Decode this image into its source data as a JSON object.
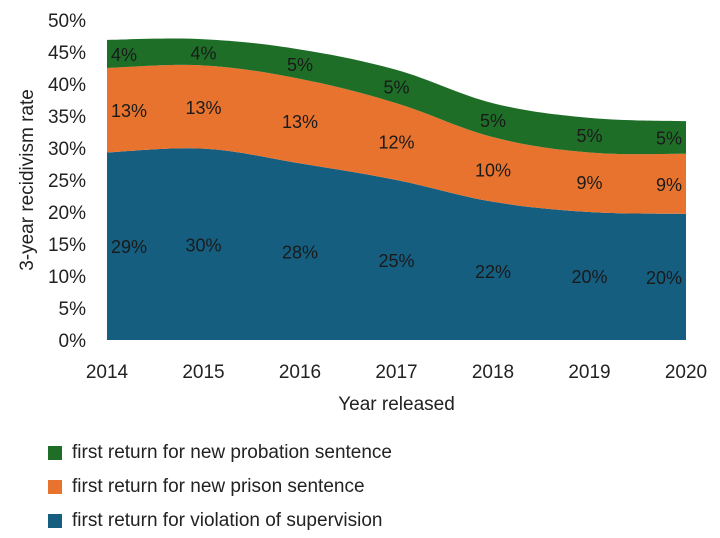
{
  "chart_data": {
    "type": "area",
    "stacked": true,
    "xlabel": "Year released",
    "ylabel": "3-year recidivism rate",
    "ylim": [
      0,
      50
    ],
    "y_ticks": [
      "0%",
      "5%",
      "10%",
      "15%",
      "20%",
      "25%",
      "30%",
      "35%",
      "40%",
      "45%",
      "50%"
    ],
    "categories": [
      "2014",
      "2015",
      "2016",
      "2017",
      "2018",
      "2019",
      "2020"
    ],
    "grid": false,
    "legend_position": "bottom",
    "series": [
      {
        "name": "first return for violation of supervision",
        "color": "#155e80",
        "values": [
          29.3,
          29.9,
          27.6,
          25.0,
          21.6,
          20.0,
          19.7
        ],
        "labels": [
          "29%",
          "30%",
          "28%",
          "25%",
          "22%",
          "20%",
          "20%"
        ]
      },
      {
        "name": "first return for new prison sentence",
        "color": "#e8732e",
        "values": [
          13.2,
          13.0,
          13.2,
          12.0,
          10.1,
          9.3,
          9.4
        ],
        "labels": [
          "13%",
          "13%",
          "13%",
          "12%",
          "10%",
          "9%",
          "9%"
        ]
      },
      {
        "name": "first return for new probation sentence",
        "color": "#1e6e28",
        "values": [
          4.4,
          4.1,
          4.6,
          5.2,
          5.3,
          5.4,
          5.1
        ],
        "labels": [
          "4%",
          "4%",
          "5%",
          "5%",
          "5%",
          "5%",
          "5%"
        ]
      }
    ],
    "legend_order": [
      2,
      1,
      0
    ]
  }
}
